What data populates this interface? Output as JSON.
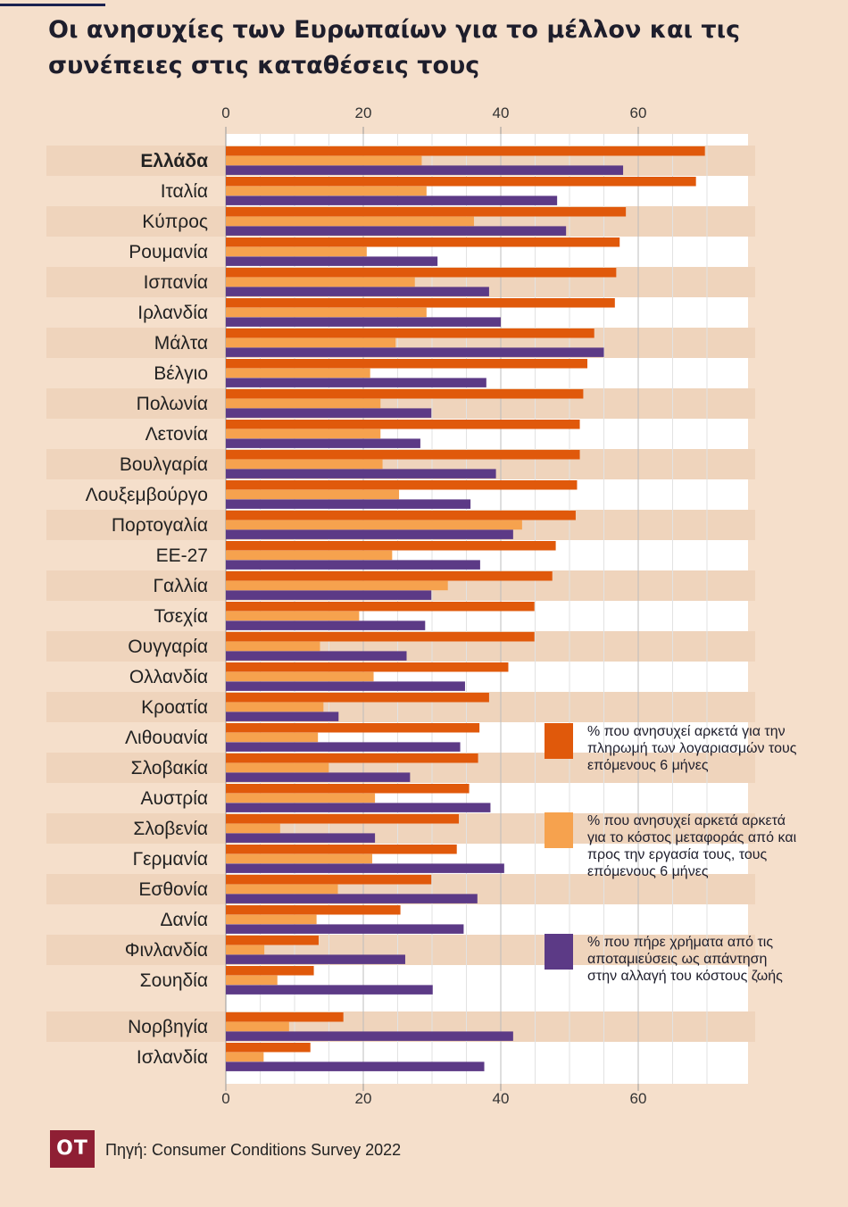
{
  "title": "Οι ανησυχίες των Ευρωπαίων για το μέλλον και τις συνέπειες στις καταθέσεις τους",
  "source": "Πηγή: Consumer Conditions Survey 2022",
  "logo": "ΟΤ",
  "colors": {
    "background": "#f5dfcb",
    "bills": "#e0590b",
    "transport": "#f6a24e",
    "savings": "#5c3a86"
  },
  "chart_data": {
    "type": "bar",
    "orientation": "horizontal",
    "xlim": [
      0,
      75
    ],
    "xticks": [
      0,
      20,
      40,
      60
    ],
    "ticks_position": "top-and-bottom",
    "legend_position": "right",
    "highlighted_category": "Ελλάδα",
    "categories": [
      "Ελλάδα",
      "Ιταλία",
      "Κύπρος",
      "Ρουμανία",
      "Ισπανία",
      "Ιρλανδία",
      "Μάλτα",
      "Βέλγιο",
      "Πολωνία",
      "Λετονία",
      "Βουλγαρία",
      "Λουξεμβούργο",
      "Πορτογαλία",
      "ΕΕ-27",
      "Γαλλία",
      "Τσεχία",
      "Ουγγαρία",
      "Ολλανδία",
      "Κροατία",
      "Λιθουανία",
      "Σλοβακία",
      "Αυστρία",
      "Σλοβενία",
      "Γερμανία",
      "Εσθονία",
      "Δανία",
      "Φινλανδία",
      "Σουηδία",
      "Νορβηγία",
      "Ισλανδία"
    ],
    "series": [
      {
        "name": "% που ανησυχεί αρκετά για την πληρωμή των λογαριασμών τους επόμενους 6 μήνες",
        "color": "#e0590b",
        "values": [
          69.7,
          68.4,
          58.2,
          57.3,
          56.8,
          56.6,
          53.6,
          52.6,
          52.0,
          51.5,
          51.5,
          51.1,
          50.9,
          48.0,
          47.5,
          44.9,
          44.9,
          41.1,
          38.3,
          36.9,
          36.7,
          35.4,
          33.9,
          33.6,
          29.9,
          25.4,
          13.5,
          12.8,
          17.1,
          12.3
        ]
      },
      {
        "name": "% που ανησυχεί αρκετά αρκετά για το κόστος μεταφοράς από και προς την εργασία τους, τους επόμενους 6 μήνες",
        "color": "#f6a24e",
        "values": [
          28.5,
          29.2,
          36.1,
          20.5,
          27.5,
          29.2,
          24.7,
          21.0,
          22.5,
          22.5,
          22.8,
          25.2,
          43.1,
          24.2,
          32.3,
          19.4,
          13.7,
          21.5,
          14.2,
          13.4,
          15.0,
          21.7,
          7.9,
          21.3,
          16.3,
          13.2,
          5.6,
          7.5,
          9.2,
          5.5
        ]
      },
      {
        "name": "% που πήρε χρήματα από τις αποταμιεύσεις ως απάντηση στην αλλαγή του κόστους ζωής",
        "color": "#5c3a86",
        "values": [
          57.8,
          48.2,
          49.5,
          30.8,
          38.3,
          40.0,
          55.0,
          37.9,
          29.9,
          28.3,
          39.3,
          35.6,
          41.8,
          37.0,
          29.9,
          29.0,
          26.3,
          34.8,
          16.4,
          34.1,
          26.8,
          38.5,
          21.7,
          40.5,
          36.6,
          34.6,
          26.1,
          30.1,
          41.8,
          37.6
        ]
      }
    ]
  }
}
